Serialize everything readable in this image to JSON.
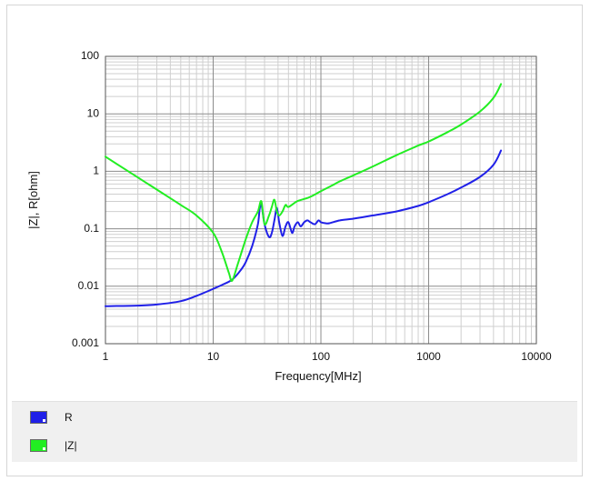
{
  "chart_data": {
    "type": "line",
    "title": "",
    "xlabel": "Frequency[MHz]",
    "ylabel": "|Z|, R[ohm]",
    "xscale": "log",
    "yscale": "log",
    "xlim": [
      1,
      10000
    ],
    "ylim": [
      0.001,
      100
    ],
    "x_ticks": [
      "1",
      "10",
      "100",
      "1000",
      "10000"
    ],
    "y_ticks": [
      "0.001",
      "0.01",
      "0.1",
      "1",
      "10",
      "100"
    ],
    "grid": true,
    "legend_position": "bottom",
    "series": [
      {
        "name": "R",
        "color": "#2020e8",
        "x": [
          1,
          2,
          3,
          5,
          7,
          10,
          12,
          15,
          18,
          20,
          23,
          26,
          27,
          28,
          30,
          33,
          35,
          37,
          39,
          41,
          44,
          47,
          50,
          54,
          57,
          61,
          65,
          70,
          75,
          80,
          88,
          95,
          100,
          110,
          120,
          150,
          200,
          300,
          500,
          800,
          1000,
          1500,
          2000,
          3000,
          4000,
          4700
        ],
        "y": [
          0.0045,
          0.0046,
          0.0048,
          0.0055,
          0.0068,
          0.009,
          0.0105,
          0.013,
          0.019,
          0.026,
          0.05,
          0.12,
          0.22,
          0.27,
          0.12,
          0.072,
          0.085,
          0.14,
          0.23,
          0.13,
          0.075,
          0.11,
          0.13,
          0.085,
          0.11,
          0.13,
          0.11,
          0.13,
          0.14,
          0.13,
          0.12,
          0.14,
          0.13,
          0.125,
          0.125,
          0.14,
          0.15,
          0.17,
          0.2,
          0.25,
          0.29,
          0.4,
          0.52,
          0.8,
          1.3,
          2.3
        ]
      },
      {
        "name": "|Z|",
        "color": "#22ee22",
        "x": [
          1,
          2,
          3,
          5,
          7,
          10,
          12,
          14,
          15,
          17,
          20,
          23,
          26,
          28,
          30,
          33,
          35,
          37,
          39,
          41,
          44,
          47,
          50,
          60,
          70,
          80,
          100,
          130,
          150,
          200,
          300,
          500,
          800,
          1000,
          1500,
          2000,
          3000,
          4000,
          4700
        ],
        "y": [
          1.8,
          0.78,
          0.48,
          0.26,
          0.17,
          0.085,
          0.04,
          0.017,
          0.0125,
          0.025,
          0.065,
          0.13,
          0.2,
          0.3,
          0.12,
          0.17,
          0.24,
          0.32,
          0.2,
          0.17,
          0.2,
          0.26,
          0.24,
          0.3,
          0.33,
          0.36,
          0.45,
          0.58,
          0.67,
          0.85,
          1.2,
          1.9,
          2.8,
          3.3,
          4.8,
          6.5,
          11,
          19,
          33
        ]
      }
    ]
  },
  "legend": {
    "items": [
      {
        "label": "R",
        "color": "#2020e8"
      },
      {
        "label": "|Z|",
        "color": "#22ee22"
      }
    ]
  }
}
